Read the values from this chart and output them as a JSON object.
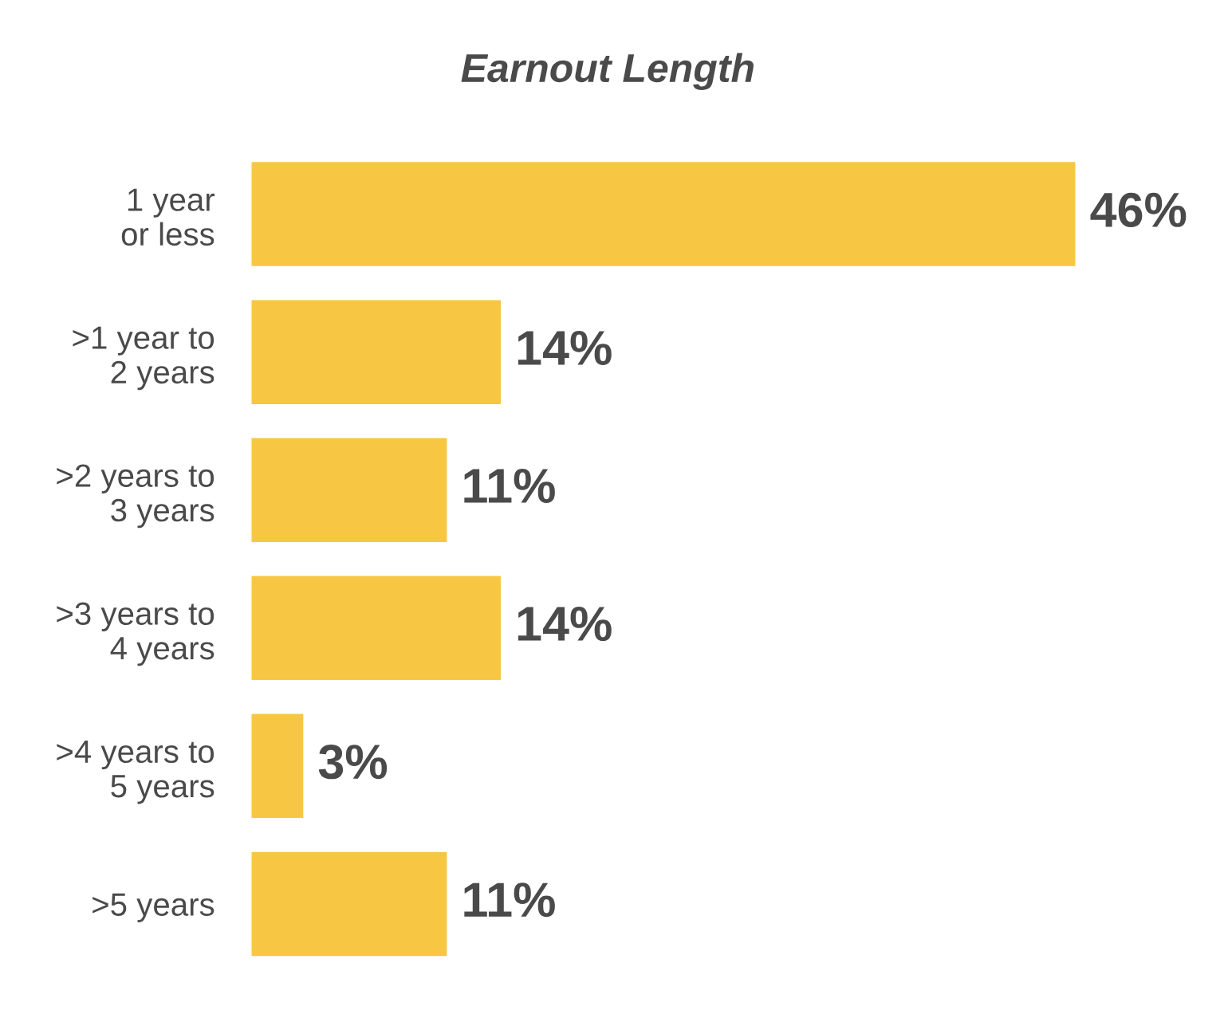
{
  "chart_data": {
    "type": "bar",
    "orientation": "horizontal",
    "title": "Earnout Length",
    "categories": [
      "1 year\nor less",
      ">1 year to\n2 years",
      ">2 years to\n3 years",
      ">3 years to\n4 years",
      ">4 years to\n5 years",
      ">5 years"
    ],
    "values": [
      46,
      14,
      11,
      14,
      3,
      11
    ],
    "value_labels": [
      "46%",
      "14%",
      "11%",
      "14%",
      "3%",
      "11%"
    ],
    "color": "#f7c744",
    "tick_labels": "y",
    "grid": false,
    "legend": false
  }
}
